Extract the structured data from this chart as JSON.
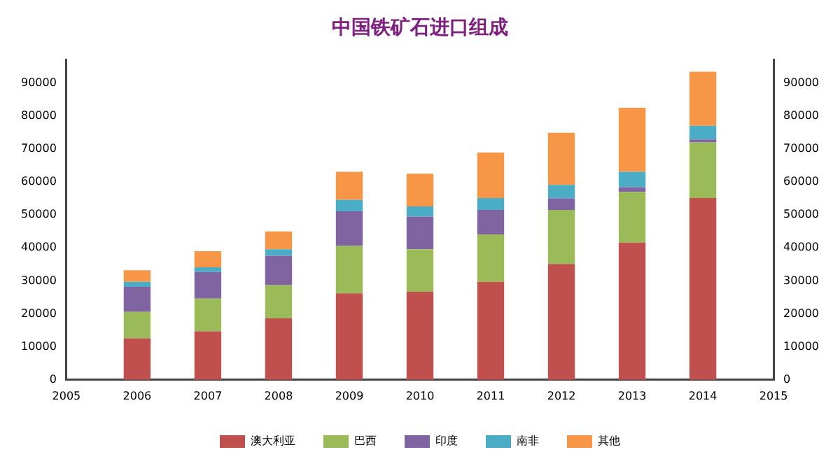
{
  "chart_data": {
    "type": "bar",
    "title": "中国铁矿石进口组成",
    "stacked": true,
    "legend": "bottom",
    "grid": false,
    "x": [
      2006,
      2007,
      2008,
      2009,
      2010,
      2011,
      2012,
      2013,
      2014
    ],
    "xlim": [
      2005,
      2015
    ],
    "xticks": [
      2005,
      2006,
      2007,
      2008,
      2009,
      2010,
      2011,
      2012,
      2013,
      2014,
      2015
    ],
    "ylim": [
      0,
      97000
    ],
    "yticks": [
      0,
      10000,
      20000,
      30000,
      40000,
      50000,
      60000,
      70000,
      80000,
      90000
    ],
    "y2lim": [
      0,
      97000
    ],
    "y2ticks": [
      0,
      10000,
      20000,
      30000,
      40000,
      50000,
      60000,
      70000,
      80000,
      90000
    ],
    "series": [
      {
        "name": "澳大利亚",
        "color": "#c0504d",
        "values": [
          12600,
          14700,
          18700,
          26200,
          26700,
          29700,
          35100,
          41600,
          55100
        ]
      },
      {
        "name": "巴西",
        "color": "#9bbb59",
        "values": [
          8000,
          9900,
          10000,
          14400,
          12900,
          14400,
          16400,
          15400,
          16900
        ]
      },
      {
        "name": "印度",
        "color": "#8064a2",
        "values": [
          7600,
          8100,
          8900,
          10500,
          9900,
          7400,
          3500,
          1400,
          900
        ]
      },
      {
        "name": "南非",
        "color": "#4bacc6",
        "values": [
          1500,
          1400,
          2000,
          3500,
          3100,
          3600,
          4100,
          4700,
          4100
        ]
      },
      {
        "name": "其他",
        "color": "#f79646",
        "values": [
          3500,
          4900,
          5400,
          8500,
          9900,
          13800,
          15800,
          19400,
          16400
        ]
      }
    ]
  }
}
